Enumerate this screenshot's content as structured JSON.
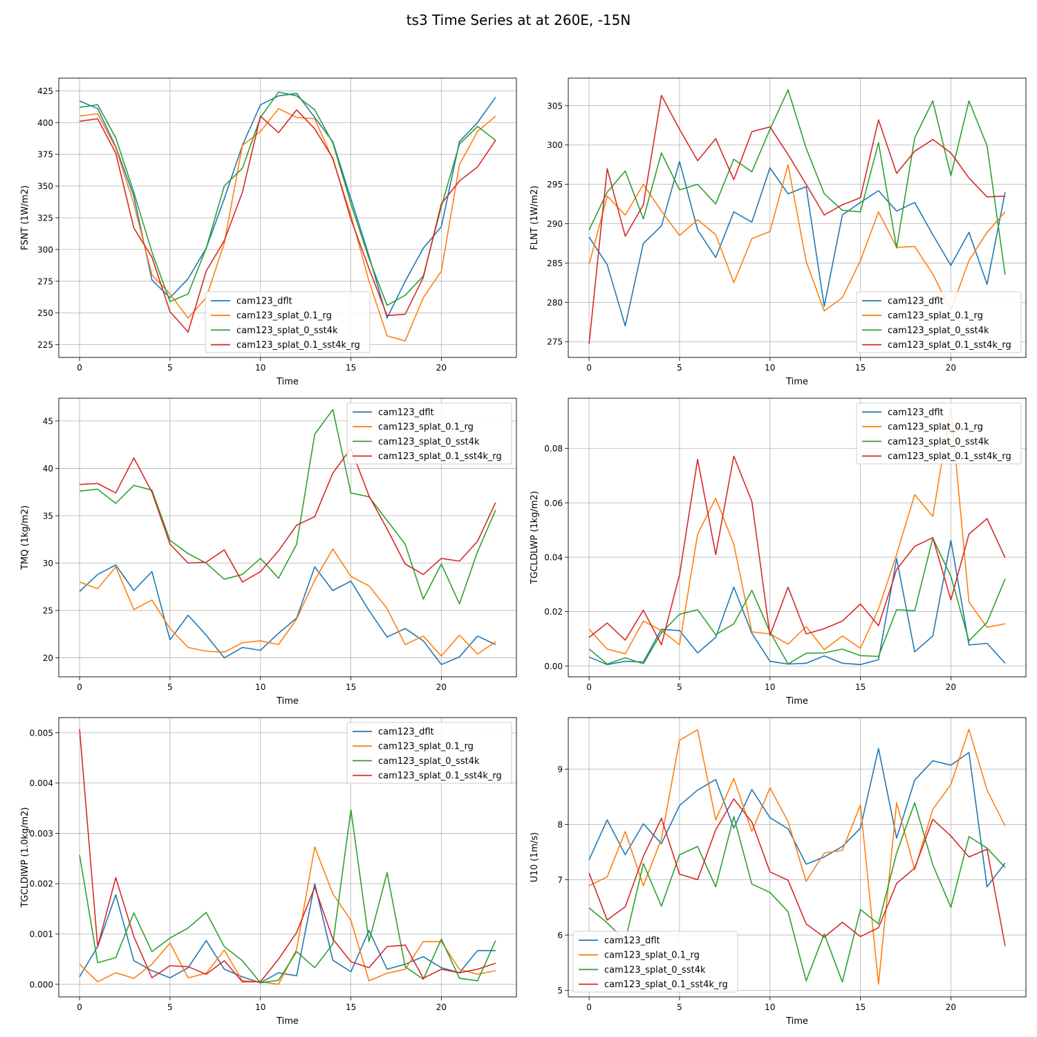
{
  "title": "ts3 Time Series at at 260E, -15N",
  "colors": {
    "cam123_dflt": "#1f77b4",
    "cam123_splat_0.1_rg": "#ff7f0e",
    "cam123_splat_0_sst4k": "#2ca02c",
    "cam123_splat_0.1_sst4k_rg": "#d62728"
  },
  "chart_data": [
    {
      "type": "line",
      "xlabel": "Time",
      "ylabel": "FSNT (1W/m2)",
      "xlim": [
        -1.15,
        24.15
      ],
      "ylim": [
        215,
        435
      ],
      "xticks": [
        0,
        5,
        10,
        15,
        20
      ],
      "yticks": [
        225,
        250,
        275,
        300,
        325,
        350,
        375,
        400,
        425
      ],
      "legend_loc": "lower-center",
      "series": [
        {
          "name": "cam123_dflt",
          "values": [
            417,
            411,
            381,
            342,
            276,
            262,
            277,
            301,
            340,
            382,
            414,
            421,
            423,
            404,
            385,
            340,
            295,
            246,
            275,
            301,
            318,
            385,
            400,
            420
          ]
        },
        {
          "name": "cam123_splat_0.1_rg",
          "values": [
            405,
            407,
            380,
            336,
            280,
            265,
            246,
            262,
            305,
            382,
            393,
            411,
            404,
            403,
            371,
            327,
            275,
            232,
            228,
            262,
            283,
            367,
            393,
            405
          ]
        },
        {
          "name": "cam123_splat_0_sst4k",
          "values": [
            412,
            414,
            388,
            345,
            298,
            259,
            265,
            301,
            350,
            364,
            404,
            424,
            421,
            410,
            384,
            336,
            293,
            256,
            264,
            279,
            334,
            383,
            397,
            386
          ]
        },
        {
          "name": "cam123_splat_0.1_sst4k_rg",
          "values": [
            401,
            403,
            376,
            317,
            294,
            251,
            235,
            283,
            307,
            345,
            405,
            392,
            410,
            395,
            372,
            324,
            285,
            248,
            249,
            278,
            336,
            354,
            365,
            386
          ]
        }
      ]
    },
    {
      "type": "line",
      "xlabel": "Time",
      "ylabel": "FLNT (1W/m2)",
      "xlim": [
        -1.15,
        24.15
      ],
      "ylim": [
        273,
        308.5
      ],
      "xticks": [
        0,
        5,
        10,
        15,
        20
      ],
      "yticks": [
        275,
        280,
        285,
        290,
        295,
        300,
        305
      ],
      "legend_loc": "lower-right",
      "series": [
        {
          "name": "cam123_dflt",
          "values": [
            288.3,
            284.8,
            277.0,
            287.5,
            289.7,
            297.9,
            289.2,
            285.7,
            291.5,
            290.2,
            297.1,
            293.8,
            294.7,
            279.5,
            291.1,
            292.7,
            294.2,
            291.6,
            292.7,
            288.6,
            284.7,
            288.9,
            282.3,
            294.0
          ]
        },
        {
          "name": "cam123_splat_0.1_rg",
          "values": [
            284.8,
            293.5,
            291.1,
            295.0,
            291.6,
            288.5,
            290.5,
            288.6,
            282.5,
            288.1,
            289.0,
            297.5,
            285.2,
            278.9,
            280.6,
            285.3,
            291.5,
            287.0,
            287.1,
            283.6,
            279.0,
            285.3,
            288.9,
            291.5
          ]
        },
        {
          "name": "cam123_splat_0_sst4k",
          "values": [
            289.2,
            294.0,
            296.7,
            290.6,
            299.0,
            294.3,
            295.0,
            292.5,
            298.2,
            296.6,
            302.0,
            307.0,
            299.6,
            293.8,
            291.7,
            291.5,
            300.3,
            286.9,
            300.9,
            305.6,
            296.1,
            305.6,
            299.9,
            283.5
          ]
        },
        {
          "name": "cam123_splat_0.1_sst4k_rg",
          "values": [
            274.7,
            297.0,
            288.4,
            292.4,
            306.3,
            302.0,
            298.0,
            300.8,
            295.6,
            301.7,
            302.3,
            298.8,
            295.0,
            291.1,
            292.4,
            293.3,
            303.2,
            296.4,
            299.2,
            300.7,
            299.0,
            295.8,
            293.4,
            293.5
          ]
        }
      ]
    },
    {
      "type": "line",
      "xlabel": "Time",
      "ylabel": "TMQ (1kg/m2)",
      "xlim": [
        -1.15,
        24.15
      ],
      "ylim": [
        18,
        47.4
      ],
      "xticks": [
        0,
        5,
        10,
        15,
        20
      ],
      "yticks": [
        20,
        25,
        30,
        35,
        40,
        45
      ],
      "legend_loc": "upper-right",
      "series": [
        {
          "name": "cam123_dflt",
          "values": [
            27.0,
            28.8,
            29.8,
            27.1,
            29.1,
            21.9,
            24.5,
            22.4,
            20.0,
            21.1,
            20.8,
            22.6,
            24.2,
            29.6,
            27.1,
            28.1,
            25.0,
            22.2,
            23.1,
            21.8,
            19.3,
            20.1,
            22.3,
            21.4
          ]
        },
        {
          "name": "cam123_splat_0.1_rg",
          "values": [
            28.0,
            27.3,
            29.6,
            25.1,
            26.1,
            23.1,
            21.1,
            20.7,
            20.6,
            21.6,
            21.8,
            21.4,
            24.1,
            28.2,
            31.5,
            28.6,
            27.6,
            25.2,
            21.4,
            22.3,
            20.2,
            22.4,
            20.4,
            21.7
          ]
        },
        {
          "name": "cam123_splat_0_sst4k",
          "values": [
            37.6,
            37.8,
            36.3,
            38.2,
            37.7,
            32.4,
            31.0,
            30.0,
            28.3,
            28.8,
            30.5,
            28.4,
            32.0,
            43.6,
            46.2,
            37.4,
            37.0,
            34.5,
            32.0,
            26.2,
            29.9,
            25.7,
            31.2,
            35.6
          ]
        },
        {
          "name": "cam123_splat_0.1_sst4k_rg",
          "values": [
            38.3,
            38.4,
            37.4,
            41.1,
            37.5,
            32.0,
            30.0,
            30.1,
            31.4,
            28.0,
            29.1,
            31.3,
            34.0,
            34.9,
            39.5,
            42.1,
            37.1,
            33.6,
            29.9,
            28.8,
            30.5,
            30.2,
            32.3,
            36.4
          ]
        }
      ]
    },
    {
      "type": "line",
      "xlabel": "Time",
      "ylabel": "TGCLDLWP (1kg/m2)",
      "xlim": [
        -1.15,
        24.15
      ],
      "ylim": [
        -0.004,
        0.0985
      ],
      "xticks": [
        0,
        5,
        10,
        15,
        20
      ],
      "yticks": [
        0.0,
        0.02,
        0.04,
        0.06,
        0.08
      ],
      "ytick_labels": [
        "0.00",
        "0.02",
        "0.04",
        "0.06",
        "0.08"
      ],
      "legend_loc": "upper-right",
      "series": [
        {
          "name": "cam123_dflt",
          "values": [
            0.0033,
            0.0005,
            0.0017,
            0.0015,
            0.0135,
            0.013,
            0.0048,
            0.0105,
            0.029,
            0.012,
            0.0017,
            0.0007,
            0.001,
            0.0037,
            0.001,
            0.0005,
            0.0023,
            0.0395,
            0.0052,
            0.011,
            0.0462,
            0.0077,
            0.0083,
            0.001
          ]
        },
        {
          "name": "cam123_splat_0.1_rg",
          "values": [
            0.0135,
            0.0062,
            0.0045,
            0.0165,
            0.013,
            0.0078,
            0.0485,
            0.0617,
            0.0448,
            0.0125,
            0.0118,
            0.008,
            0.0145,
            0.006,
            0.011,
            0.0065,
            0.021,
            0.041,
            0.063,
            0.055,
            0.095,
            0.0235,
            0.0142,
            0.0155
          ]
        },
        {
          "name": "cam123_splat_0_sst4k",
          "values": [
            0.0062,
            0.0007,
            0.003,
            0.0008,
            0.0122,
            0.019,
            0.0207,
            0.0115,
            0.0155,
            0.0278,
            0.0125,
            0.0007,
            0.0047,
            0.0048,
            0.0062,
            0.0038,
            0.0035,
            0.0207,
            0.0203,
            0.047,
            0.033,
            0.0092,
            0.016,
            0.032
          ]
        },
        {
          "name": "cam123_splat_0.1_sst4k_rg",
          "values": [
            0.0105,
            0.0158,
            0.0095,
            0.0205,
            0.0078,
            0.0335,
            0.076,
            0.041,
            0.0772,
            0.0605,
            0.0112,
            0.029,
            0.0118,
            0.0137,
            0.0165,
            0.0228,
            0.0148,
            0.0355,
            0.044,
            0.0472,
            0.0243,
            0.0485,
            0.0542,
            0.0398
          ]
        }
      ]
    },
    {
      "type": "line",
      "xlabel": "Time",
      "ylabel": "TGCLDIWP (1.0kg/m2)",
      "xlim": [
        -1.15,
        24.15
      ],
      "ylim": [
        -0.00025,
        0.0053
      ],
      "xticks": [
        0,
        5,
        10,
        15,
        20
      ],
      "yticks": [
        0.0,
        0.001,
        0.002,
        0.003,
        0.004,
        0.005
      ],
      "ytick_labels": [
        "0.000",
        "0.001",
        "0.002",
        "0.003",
        "0.004",
        "0.005"
      ],
      "legend_loc": "upper-right",
      "series": [
        {
          "name": "cam123_dflt",
          "values": [
            0.00015,
            0.00075,
            0.00178,
            0.00047,
            0.00027,
            0.00013,
            0.00033,
            0.00087,
            0.0003,
            0.00015,
            3e-05,
            0.00023,
            0.00017,
            0.002,
            0.00048,
            0.00025,
            0.00107,
            0.0003,
            0.0004,
            0.00055,
            0.00033,
            0.00023,
            0.00067,
            0.00067
          ]
        },
        {
          "name": "cam123_splat_0.1_rg",
          "values": [
            0.0004,
            5e-05,
            0.00023,
            0.00012,
            0.0004,
            0.00082,
            0.00013,
            0.00022,
            0.00068,
            7e-05,
            5e-05,
            0.0,
            0.0007,
            0.00273,
            0.0018,
            0.00127,
            7e-05,
            0.00022,
            0.0003,
            0.00085,
            0.00085,
            0.0003,
            0.0002,
            0.00027
          ]
        },
        {
          "name": "cam123_splat_0_sst4k",
          "values": [
            0.00257,
            0.00043,
            0.00053,
            0.00142,
            0.00065,
            0.00092,
            0.00112,
            0.00143,
            0.00075,
            0.00047,
            3e-05,
            8e-05,
            0.00065,
            0.00033,
            0.0008,
            0.00347,
            0.00085,
            0.00222,
            0.00035,
            0.0001,
            0.0009,
            0.00012,
            7e-05,
            0.00087
          ]
        },
        {
          "name": "cam123_splat_0.1_sst4k_rg",
          "values": [
            0.00507,
            0.00075,
            0.00212,
            0.00095,
            0.00013,
            0.00037,
            0.00035,
            0.0002,
            0.00047,
            5e-05,
            5e-05,
            0.0005,
            0.00103,
            0.00193,
            0.0009,
            0.00045,
            0.00033,
            0.00075,
            0.00078,
            0.00012,
            0.0003,
            0.00023,
            0.0003,
            0.00042
          ]
        }
      ]
    },
    {
      "type": "line",
      "xlabel": "Time",
      "ylabel": "U10 (1m/s)",
      "xlim": [
        -1.15,
        24.15
      ],
      "ylim": [
        4.88,
        9.93
      ],
      "xticks": [
        0,
        5,
        10,
        15,
        20
      ],
      "yticks": [
        5,
        6,
        7,
        8,
        9
      ],
      "legend_loc": "lower-left",
      "series": [
        {
          "name": "cam123_dflt",
          "values": [
            7.36,
            8.08,
            7.45,
            8.01,
            7.65,
            8.34,
            8.62,
            8.81,
            7.93,
            8.63,
            8.12,
            7.92,
            7.28,
            7.41,
            7.6,
            7.93,
            9.37,
            7.75,
            8.8,
            9.15,
            9.07,
            9.3,
            6.87,
            7.3
          ]
        },
        {
          "name": "cam123_splat_0.1_rg",
          "values": [
            6.89,
            7.05,
            7.87,
            6.89,
            7.74,
            9.52,
            9.71,
            8.08,
            8.83,
            7.87,
            8.66,
            8.05,
            6.97,
            7.48,
            7.53,
            8.35,
            5.11,
            8.39,
            7.18,
            8.27,
            8.72,
            9.72,
            8.62,
            7.97
          ]
        },
        {
          "name": "cam123_splat_0_sst4k",
          "values": [
            6.49,
            6.22,
            5.89,
            7.29,
            6.52,
            7.45,
            7.6,
            6.87,
            8.14,
            6.92,
            6.77,
            6.42,
            5.17,
            6.02,
            5.15,
            6.46,
            6.2,
            7.48,
            8.39,
            7.27,
            6.5,
            7.78,
            7.57,
            7.22
          ]
        },
        {
          "name": "cam123_splat_0.1_sst4k_rg",
          "values": [
            7.12,
            6.27,
            6.51,
            7.42,
            8.11,
            7.1,
            7.0,
            7.9,
            8.46,
            8.04,
            7.14,
            6.99,
            6.2,
            5.96,
            6.23,
            5.97,
            6.13,
            6.93,
            7.21,
            8.09,
            7.79,
            7.41,
            7.55,
            5.8
          ]
        }
      ]
    }
  ]
}
